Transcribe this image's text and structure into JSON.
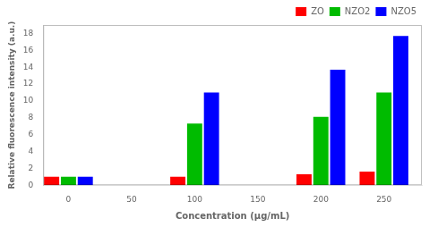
{
  "chart_data": {
    "type": "bar",
    "x": [
      0,
      100,
      200,
      250
    ],
    "series": [
      {
        "name": "ZO",
        "color": "#ff0000",
        "values": [
          1.0,
          1.0,
          1.3,
          1.6
        ]
      },
      {
        "name": "NZO2",
        "color": "#00bb00",
        "values": [
          1.0,
          7.3,
          8.1,
          11.0
        ]
      },
      {
        "name": "NZO5",
        "color": "#0000ff",
        "values": [
          1.0,
          11.0,
          13.7,
          17.7
        ]
      }
    ],
    "xlabel": "Concentration (μg/mL)",
    "ylabel": "Relative fluorescence intensity (a.u.)",
    "xlim": [
      -20,
      280
    ],
    "xticks": [
      0,
      50,
      100,
      150,
      200,
      250
    ],
    "ylim": [
      0,
      19
    ],
    "yticks": [
      0,
      2,
      4,
      6,
      8,
      10,
      12,
      14,
      16,
      18
    ],
    "grid": false,
    "legend": "upper right"
  }
}
